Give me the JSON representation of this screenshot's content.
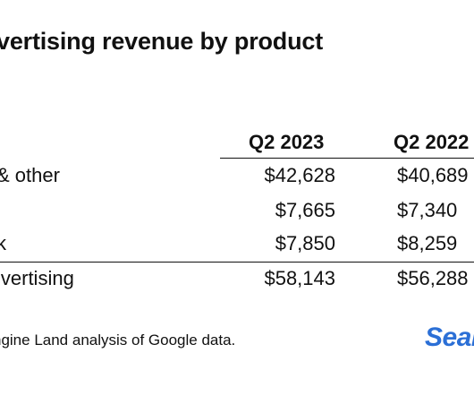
{
  "title": "vertising revenue by product",
  "table": {
    "columns": [
      "Q2 2023",
      "Q2 2022"
    ],
    "rows": [
      {
        "label": "& other",
        "q2_2023": "$42,628",
        "q2_2022": "$40,689"
      },
      {
        "label": "",
        "q2_2023": "$7,665",
        "q2_2022": "$7,340"
      },
      {
        "label": "k",
        "q2_2023": "$7,850",
        "q2_2022": "$8,259"
      }
    ],
    "total": {
      "label": "lvertising",
      "q2_2023": "$58,143",
      "q2_2022": "$56,288"
    }
  },
  "source": "ngine Land analysis of Google data.",
  "logo": "Sear",
  "colors": {
    "text": "#111111",
    "logo": "#2b6fd6",
    "background": "#ffffff"
  }
}
